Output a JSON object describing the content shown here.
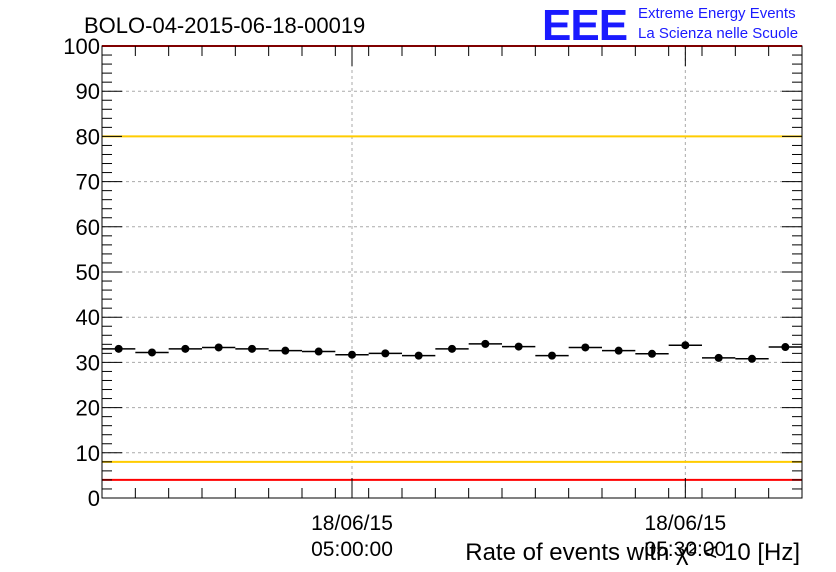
{
  "chart_data": {
    "type": "scatter",
    "title": "BOLO-04-2015-06-18-00019",
    "xlabel": "Rate of events with χ² < 10 [Hz]",
    "ylabel": "",
    "ylim": [
      0,
      100
    ],
    "yticks": [
      0,
      10,
      20,
      30,
      40,
      50,
      60,
      70,
      80,
      90,
      100
    ],
    "xtick_labels": [
      {
        "index": 7.5,
        "date": "18/06/15",
        "time": "05:00:00"
      },
      {
        "index": 17.5,
        "date": "18/06/15",
        "time": "05:30:00"
      }
    ],
    "grid": true,
    "reference_lines": [
      {
        "value": 100,
        "color": "#ff0000"
      },
      {
        "value": 80,
        "color": "#ffcc00"
      },
      {
        "value": 8,
        "color": "#ffcc00"
      },
      {
        "value": 4,
        "color": "#ff0000"
      }
    ],
    "series": [
      {
        "values": [
          33.0,
          32.2,
          33.0,
          33.3,
          33.0,
          32.6,
          32.4,
          31.7,
          32.0,
          31.5,
          33.0,
          34.1,
          33.5,
          31.5,
          33.3,
          32.6,
          31.9,
          33.8,
          31.0,
          30.8,
          33.4
        ]
      }
    ]
  },
  "logo": {
    "mark": "EEE",
    "line1": "Extreme Energy Events",
    "line2": "La Scienza nelle Scuole"
  },
  "colors": {
    "marker": "#000000",
    "grid": "#aaaaaa",
    "logo": "#1a1aff",
    "red_line": "#ff0000",
    "yellow_line": "#ffcc00"
  }
}
